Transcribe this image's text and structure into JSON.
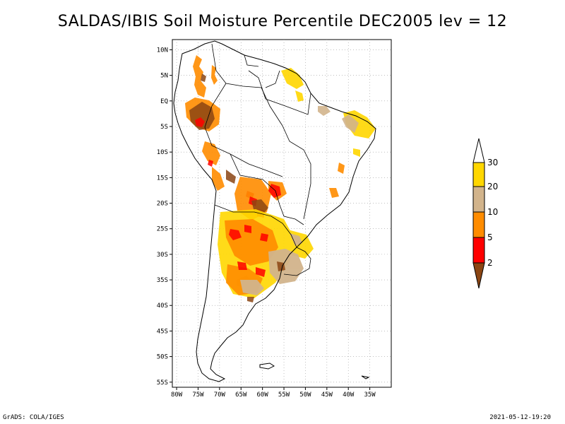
{
  "title": "SALDAS/IBIS Soil Moisture Percentile DEC2005 lev = 12",
  "footer": {
    "left": "GrADS: COLA/IGES",
    "right": "2021-05-12-19:20"
  },
  "map": {
    "lon_range": [
      -81,
      -30
    ],
    "lat_range": [
      -56,
      12
    ],
    "lon_ticks": [
      {
        "value": -80,
        "label": "80W"
      },
      {
        "value": -75,
        "label": "75W"
      },
      {
        "value": -70,
        "label": "70W"
      },
      {
        "value": -65,
        "label": "65W"
      },
      {
        "value": -60,
        "label": "60W"
      },
      {
        "value": -55,
        "label": "55W"
      },
      {
        "value": -50,
        "label": "50W"
      },
      {
        "value": -45,
        "label": "45W"
      },
      {
        "value": -40,
        "label": "40W"
      },
      {
        "value": -35,
        "label": "35W"
      }
    ],
    "lat_ticks": [
      {
        "value": 10,
        "label": "10N"
      },
      {
        "value": 5,
        "label": "5N"
      },
      {
        "value": 0,
        "label": "EQ"
      },
      {
        "value": -5,
        "label": "5S"
      },
      {
        "value": -10,
        "label": "10S"
      },
      {
        "value": -15,
        "label": "15S"
      },
      {
        "value": -20,
        "label": "20S"
      },
      {
        "value": -25,
        "label": "25S"
      },
      {
        "value": -30,
        "label": "30S"
      },
      {
        "value": -35,
        "label": "35S"
      },
      {
        "value": -40,
        "label": "40S"
      },
      {
        "value": -45,
        "label": "45S"
      },
      {
        "value": -50,
        "label": "50S"
      },
      {
        "value": -55,
        "label": "55S"
      }
    ],
    "grid": "dotted"
  },
  "legend": {
    "labels": [
      "2",
      "5",
      "10",
      "20",
      "30"
    ],
    "colors": {
      "below_2": "#8b4513",
      "2_5": "#ff0000",
      "5_10": "#ff8c00",
      "10_20": "#d2b48c",
      "20_30": "#ffd700",
      "above_30": "#ffffff"
    }
  }
}
